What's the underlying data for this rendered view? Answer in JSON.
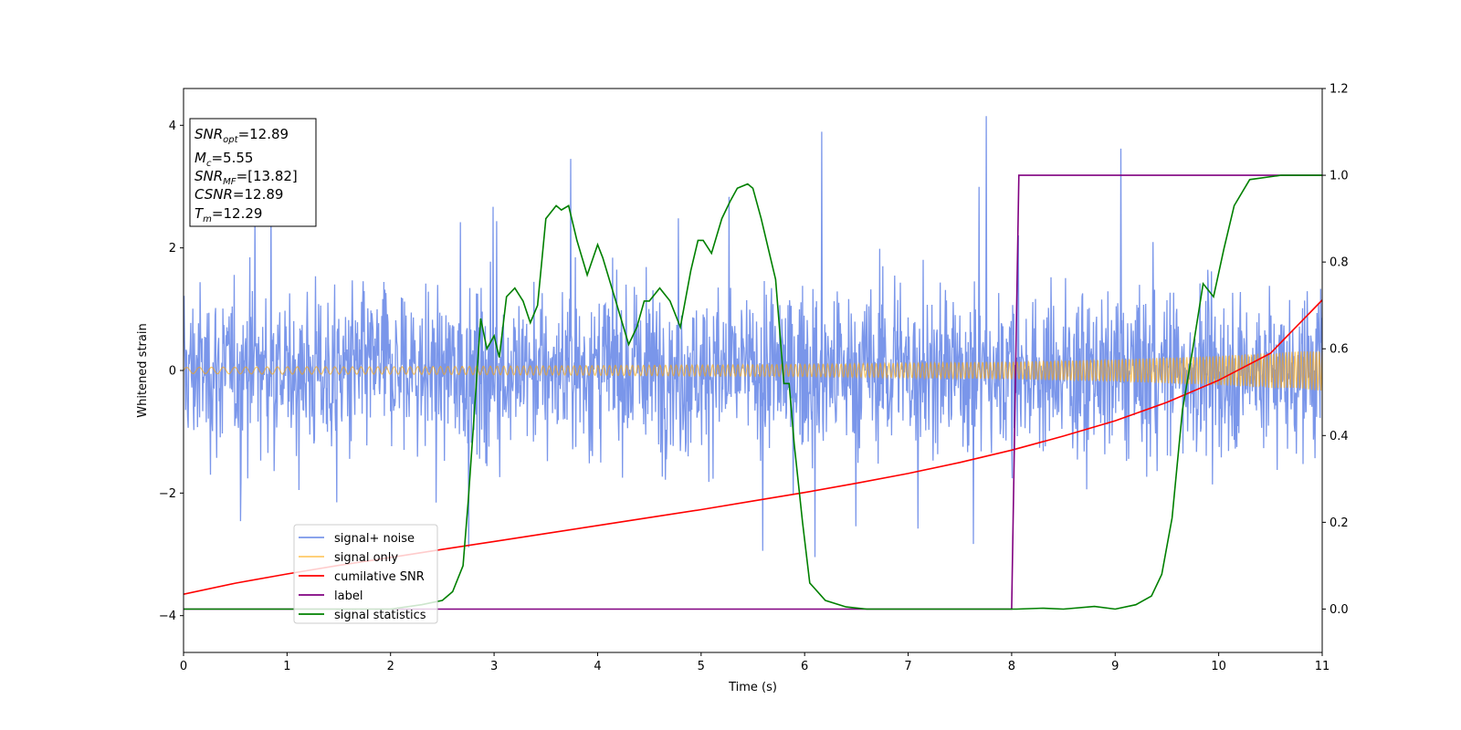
{
  "chart_data": {
    "type": "line",
    "xlabel": "Time (s)",
    "ylabel": "Whitened strain",
    "xlim": [
      0,
      11
    ],
    "ylim_left": [
      -4.6,
      4.6
    ],
    "ylim_right": [
      -0.1,
      1.2
    ],
    "x_ticks": [
      "0",
      "1",
      "2",
      "3",
      "4",
      "5",
      "6",
      "7",
      "8",
      "9",
      "10",
      "11"
    ],
    "y_ticks_left": [
      "4",
      "2",
      "0",
      "−2",
      "−4"
    ],
    "y_ticks_right": [
      "1.2",
      "1.0",
      "0.8",
      "0.6",
      "0.4",
      "0.2",
      "0.0"
    ],
    "legend_position": "lower-left",
    "grid": false,
    "info_box": {
      "lines": [
        {
          "name": "SNR",
          "sub": "opt",
          "value": "=12.89"
        },
        {
          "name": "M",
          "sub": "c",
          "value": "=5.55"
        },
        {
          "name": "SNR",
          "sub": "MF",
          "value": "=[13.82]"
        },
        {
          "name": "CSNR",
          "sub": "",
          "value": "=12.89"
        },
        {
          "name": "T",
          "sub": "m",
          "value": "=12.29"
        }
      ]
    },
    "series": [
      {
        "name": "signal+ noise",
        "axis": "left",
        "color": "#4169e1",
        "noise_band": {
          "x": [
            0,
            11
          ],
          "approx_range": [
            -3.5,
            3.5
          ]
        }
      },
      {
        "name": "signal only",
        "axis": "left",
        "color": "#ffa500",
        "envelope": {
          "x": [
            0,
            1,
            2,
            3,
            4,
            5,
            6,
            7,
            8,
            9,
            10,
            11
          ],
          "amplitude": [
            0.05,
            0.06,
            0.06,
            0.07,
            0.08,
            0.09,
            0.1,
            0.12,
            0.14,
            0.18,
            0.24,
            0.33
          ]
        }
      },
      {
        "name": "cumilative SNR",
        "axis": "left",
        "color": "#ff0000",
        "x": [
          0,
          0.5,
          1,
          1.5,
          2,
          2.5,
          3,
          3.5,
          4,
          4.5,
          5,
          5.5,
          6,
          6.5,
          7,
          7.5,
          8,
          8.5,
          9,
          9.5,
          10,
          10.5,
          11
        ],
        "y": [
          -3.65,
          -3.47,
          -3.32,
          -3.18,
          -3.05,
          -2.92,
          -2.79,
          -2.66,
          -2.53,
          -2.4,
          -2.27,
          -2.13,
          -1.99,
          -1.84,
          -1.68,
          -1.5,
          -1.3,
          -1.07,
          -0.82,
          -0.52,
          -0.16,
          0.28,
          1.15
        ]
      },
      {
        "name": "label",
        "axis": "right",
        "color": "#800080",
        "x": [
          0,
          8.0,
          8.07,
          11
        ],
        "y": [
          0.0,
          0.0,
          1.0,
          1.0
        ]
      },
      {
        "name": "signal statistics",
        "axis": "right",
        "color": "#008000",
        "x": [
          0,
          0.5,
          1,
          1.5,
          2,
          2.3,
          2.5,
          2.6,
          2.7,
          2.75,
          2.8,
          2.87,
          2.93,
          3.0,
          3.05,
          3.12,
          3.2,
          3.28,
          3.35,
          3.42,
          3.5,
          3.6,
          3.65,
          3.72,
          3.8,
          3.9,
          4.0,
          4.05,
          4.15,
          4.3,
          4.38,
          4.45,
          4.5,
          4.6,
          4.7,
          4.8,
          4.9,
          4.97,
          5.02,
          5.1,
          5.2,
          5.28,
          5.35,
          5.45,
          5.5,
          5.58,
          5.65,
          5.72,
          5.8,
          5.85,
          5.9,
          5.98,
          6.05,
          6.2,
          6.4,
          6.6,
          7.0,
          7.5,
          8.0,
          8.05,
          8.3,
          8.5,
          8.8,
          9.0,
          9.2,
          9.35,
          9.45,
          9.55,
          9.65,
          9.75,
          9.85,
          9.95,
          10.05,
          10.15,
          10.3,
          10.6,
          11.0
        ],
        "y": [
          0.0,
          0.0,
          0.0,
          0.0,
          0.0,
          0.01,
          0.02,
          0.04,
          0.1,
          0.25,
          0.42,
          0.67,
          0.6,
          0.63,
          0.58,
          0.72,
          0.74,
          0.71,
          0.66,
          0.7,
          0.9,
          0.93,
          0.92,
          0.93,
          0.85,
          0.77,
          0.84,
          0.81,
          0.73,
          0.61,
          0.65,
          0.71,
          0.71,
          0.74,
          0.71,
          0.65,
          0.78,
          0.85,
          0.85,
          0.82,
          0.9,
          0.94,
          0.97,
          0.98,
          0.97,
          0.9,
          0.83,
          0.76,
          0.52,
          0.52,
          0.38,
          0.2,
          0.06,
          0.02,
          0.005,
          0.0,
          0.0,
          0.0,
          0.0,
          0.0,
          0.002,
          0.0,
          0.006,
          0.0,
          0.01,
          0.03,
          0.08,
          0.21,
          0.46,
          0.6,
          0.75,
          0.72,
          0.83,
          0.93,
          0.99,
          1.0,
          1.0
        ]
      }
    ]
  }
}
